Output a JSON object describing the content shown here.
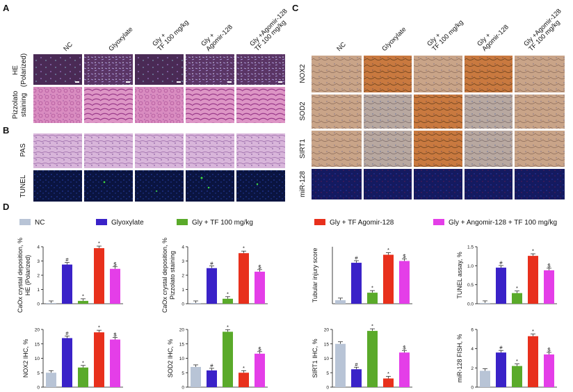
{
  "panel_letters": [
    "A",
    "B",
    "C",
    "D"
  ],
  "panel_a": {
    "columns": [
      "NC",
      "Glyoxylate",
      "Gly +\nTF 100 mg/kg",
      "Gly +\nAgomir-128",
      "Gly +Agomir-128\nTF 100 mg/kg"
    ],
    "rows": [
      "HE\n(Polarized)",
      "Pizzolato\nstaining"
    ]
  },
  "panel_b": {
    "rows": [
      "PAS",
      "TUNEL"
    ]
  },
  "panel_c": {
    "columns": [
      "NC",
      "Glyoxylate",
      "Gly +\nTF 100 mg/kg",
      "Gly +\nAgomir-128",
      "Gly +Agomir-128\nTF 100 mg/kg"
    ],
    "rows": [
      "NOX2",
      "SOD2",
      "SIRT1",
      "miR-128"
    ]
  },
  "legend": [
    "NC",
    "Glyoxylate",
    "Gly + TF 100 mg/kg",
    "Gly + TF Agomir-128",
    "Gly + Angomir-128 + TF 100 mg/kg"
  ],
  "colors": {
    "NC": "#b8c4d6",
    "Glyoxylate": "#3a22c8",
    "Gly_TF": "#5aaa2a",
    "Gly_Agomir": "#e8301c",
    "Gly_Agomir_TF": "#e43ee8",
    "tissue_he": "#4a2a55",
    "tissue_pink": "#d98cc0",
    "tissue_pas": "#d8b0d8",
    "tissue_tunel": "#0a1440",
    "tissue_ihc": "#c08a5a",
    "tissue_fish": "#141a60"
  },
  "chart_data": [
    {
      "type": "bar",
      "ylabel": "CaOx crystal deposition, %\nHE (Polarized)",
      "categories": [
        "NC",
        "Glyoxylate",
        "Gly + TF 100 mg/kg",
        "Gly + TF Agomir-128",
        "Gly + Angomir-128 + TF 100 mg/kg"
      ],
      "values": [
        0.05,
        2.75,
        0.2,
        3.9,
        2.45
      ],
      "marks": [
        "",
        "#",
        "*",
        "*",
        "$"
      ],
      "ylim": [
        0,
        4
      ],
      "yticks": [
        "0",
        "1",
        "2",
        "3",
        "4"
      ]
    },
    {
      "type": "bar",
      "ylabel": "CaOx crystal deposition, %\nPizzolato staining",
      "categories": [
        "NC",
        "Glyoxylate",
        "Gly + TF 100 mg/kg",
        "Gly + TF Agomir-128",
        "Gly + Angomir-128 + TF 100 mg/kg"
      ],
      "values": [
        0.05,
        2.5,
        0.35,
        3.55,
        2.25
      ],
      "marks": [
        "",
        "#",
        "*",
        "*",
        "$"
      ],
      "ylim": [
        0,
        4
      ],
      "yticks": [
        "0",
        "1",
        "2",
        "3",
        "4"
      ]
    },
    {
      "type": "bar",
      "ylabel": "Tubular injury score",
      "categories": [
        "NC",
        "Glyoxylate",
        "Gly + TF 100 mg/kg",
        "Gly + TF Agomir-128",
        "Gly + Angomir-128 + TF 100 mg/kg"
      ],
      "values": [
        0.2,
        2.3,
        0.62,
        2.75,
        2.4
      ],
      "marks": [
        "",
        "#",
        "*",
        "*",
        "$"
      ],
      "ylim": [
        0,
        3.2
      ],
      "yticks": []
    },
    {
      "type": "bar",
      "ylabel": "TUNEL assay, %",
      "categories": [
        "NC",
        "Glyoxylate",
        "Gly + TF 100 mg/kg",
        "Gly + TF Agomir-128",
        "Gly + Angomir-128 + TF 100 mg/kg"
      ],
      "values": [
        0.02,
        0.95,
        0.28,
        1.26,
        0.88
      ],
      "marks": [
        "",
        "#",
        "*",
        "*",
        "$"
      ],
      "ylim": [
        0,
        1.5
      ],
      "yticks": [
        "0.0",
        "0.5",
        "1.0",
        "1.5"
      ]
    },
    {
      "type": "bar",
      "ylabel": "NOX2 IHC, %",
      "categories": [
        "NC",
        "Glyoxylate",
        "Gly + TF 100 mg/kg",
        "Gly + TF Agomir-128",
        "Gly + Angomir-128 + TF 100 mg/kg"
      ],
      "values": [
        5,
        17,
        6.8,
        19,
        16.5
      ],
      "marks": [
        "",
        "#",
        "*",
        "*",
        "$"
      ],
      "ylim": [
        0,
        20
      ],
      "yticks": [
        "0",
        "5",
        "10",
        "15",
        "20"
      ]
    },
    {
      "type": "bar",
      "ylabel": "SOD2 IHC, %",
      "categories": [
        "NC",
        "Glyoxylate",
        "Gly + TF 100 mg/kg",
        "Gly + TF Agomir-128",
        "Gly + Angomir-128 + TF 100 mg/kg"
      ],
      "values": [
        7,
        5.8,
        19.2,
        5,
        11.6
      ],
      "marks": [
        "",
        "#",
        "*",
        "*",
        "$"
      ],
      "ylim": [
        0,
        20
      ],
      "yticks": [
        "0",
        "5",
        "10",
        "15",
        "20"
      ]
    },
    {
      "type": "bar",
      "ylabel": "SIRT1 IHC, %",
      "categories": [
        "NC",
        "Glyoxylate",
        "Gly + TF 100 mg/kg",
        "Gly + TF Agomir-128",
        "Gly + Angomir-128 + TF 100 mg/kg"
      ],
      "values": [
        15,
        6.2,
        19.5,
        3,
        12
      ],
      "marks": [
        "",
        "#",
        "*",
        "*",
        "$"
      ],
      "ylim": [
        0,
        20
      ],
      "yticks": [
        "0",
        "5",
        "10",
        "15",
        "20"
      ]
    },
    {
      "type": "bar",
      "ylabel": "miR-128 FISH, %",
      "categories": [
        "NC",
        "Glyoxylate",
        "Gly + TF 100 mg/kg",
        "Gly + TF Agomir-128",
        "Gly + Angomir-128 + TF 100 mg/kg"
      ],
      "values": [
        1.7,
        3.6,
        2.2,
        5.3,
        3.4
      ],
      "marks": [
        "",
        "#",
        "*",
        "*",
        "$"
      ],
      "ylim": [
        0,
        6
      ],
      "yticks": [
        "0",
        "2",
        "4",
        "6"
      ]
    }
  ]
}
